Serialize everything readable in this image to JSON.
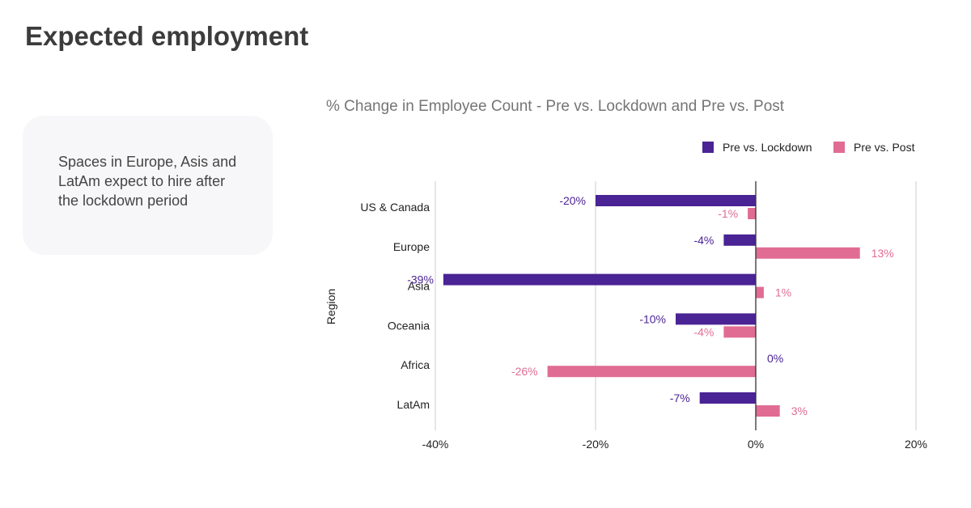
{
  "page": {
    "title": "Expected employment",
    "note": "Spaces in Europe, Asis and LatAm expect to hire after the lockdown period"
  },
  "chart_data": {
    "type": "bar",
    "orientation": "horizontal",
    "title": "% Change in Employee Count - Pre vs. Lockdown and Pre vs. Post",
    "xlabel": "",
    "ylabel": "Region",
    "categories": [
      "US & Canada",
      "Europe",
      "Asia",
      "Oceania",
      "Africa",
      "LatAm"
    ],
    "series": [
      {
        "name": "Pre vs. Lockdown",
        "color": "#4a2394",
        "values": [
          -20,
          -4,
          -39,
          -10,
          0,
          -7
        ],
        "labels": [
          "-20%",
          "-4%",
          "-39%",
          "-10%",
          "0%",
          "-7%"
        ]
      },
      {
        "name": "Pre vs. Post",
        "color": "#e06c94",
        "values": [
          -1,
          13,
          1,
          -4,
          -26,
          3
        ],
        "labels": [
          "-1%",
          "13%",
          "1%",
          "-4%",
          "-26%",
          "3%"
        ]
      }
    ],
    "xlim": [
      -40,
      20
    ],
    "xticks": [
      -40,
      -20,
      0,
      20
    ],
    "xtick_labels": [
      "-40%",
      "-20%",
      "0%",
      "20%"
    ],
    "grid": true,
    "legend_position": "top-right"
  }
}
